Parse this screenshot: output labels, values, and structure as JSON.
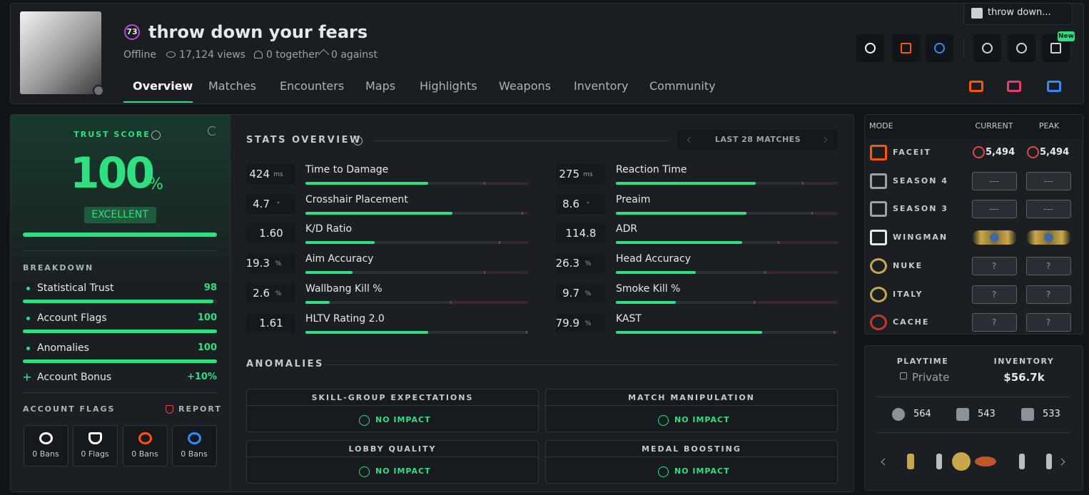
{
  "tab_preview": "throw down...",
  "profile": {
    "level": "73",
    "name": "throw down your fears",
    "status": "Offline",
    "views": "17,124 views",
    "together": "0 together",
    "against": "0 against",
    "badge_new": "New"
  },
  "tabs": [
    "Overview",
    "Matches",
    "Encounters",
    "Maps",
    "Highlights",
    "Weapons",
    "Inventory",
    "Community"
  ],
  "trust": {
    "title": "TRUST SCORE",
    "score": "100",
    "unit": "%",
    "rating": "EXCELLENT",
    "breakdown_title": "BREAKDOWN",
    "breakdown": [
      {
        "label": "Statistical Trust",
        "value": 98
      },
      {
        "label": "Account Flags",
        "value": 100
      },
      {
        "label": "Anomalies",
        "value": 100
      }
    ],
    "bonus": {
      "label": "Account Bonus",
      "value": "+10%"
    }
  },
  "flags": {
    "title": "ACCOUNT FLAGS",
    "report": "REPORT",
    "items": [
      "0 Bans",
      "0 Flags",
      "0 Bans",
      "0 Bans"
    ]
  },
  "stats": {
    "title": "STATS OVERVIEW",
    "range": "LAST 28 MATCHES",
    "items": [
      {
        "value": "424",
        "unit": "ms",
        "label": "Time to Damage"
      },
      {
        "value": "275",
        "unit": "ms",
        "label": "Reaction Time"
      },
      {
        "value": "4.7",
        "unit": "°",
        "label": "Crosshair Placement"
      },
      {
        "value": "8.6",
        "unit": "°",
        "label": "Preaim"
      },
      {
        "value": "1.60",
        "label": "K/D Ratio"
      },
      {
        "value": "114.8",
        "label": "ADR"
      },
      {
        "value": "19.3",
        "unit": "%",
        "label": "Aim Accuracy"
      },
      {
        "value": "26.3",
        "unit": "%",
        "label": "Head Accuracy"
      },
      {
        "value": "2.6",
        "unit": "%",
        "label": "Wallbang Kill %"
      },
      {
        "value": "9.7",
        "unit": "%",
        "label": "Smoke Kill %"
      },
      {
        "value": "1.61",
        "label": "HLTV Rating 2.0"
      },
      {
        "value": "79.9",
        "unit": "%",
        "label": "KAST"
      }
    ]
  },
  "anomalies": {
    "title": "ANOMALIES",
    "items": [
      {
        "label": "SKILL-GROUP EXPECTATIONS",
        "result": "NO IMPACT"
      },
      {
        "label": "MATCH MANIPULATION",
        "result": "NO IMPACT"
      },
      {
        "label": "LOBBY QUALITY",
        "result": "NO IMPACT"
      },
      {
        "label": "MEDAL BOOSTING",
        "result": "NO IMPACT"
      }
    ]
  },
  "ranks": {
    "headers": [
      "MODE",
      "CURRENT",
      "PEAK"
    ],
    "rows": [
      {
        "mode": "FACEIT",
        "current": "5,494",
        "peak": "5,494"
      },
      {
        "mode": "SEASON 4",
        "current": "---",
        "peak": "---"
      },
      {
        "mode": "SEASON 3",
        "current": "---",
        "peak": "---"
      },
      {
        "mode": "WINGMAN",
        "current": null,
        "peak": null
      },
      {
        "mode": "NUKE",
        "current": "?",
        "peak": "?"
      },
      {
        "mode": "ITALY",
        "current": "?",
        "peak": "?"
      },
      {
        "mode": "CACHE",
        "current": "?",
        "peak": "?"
      }
    ]
  },
  "summary": {
    "playtime_label": "PLAYTIME",
    "playtime": "Private",
    "inventory_label": "INVENTORY",
    "inventory": "$56.7k",
    "counts": [
      "564",
      "543",
      "533"
    ]
  }
}
